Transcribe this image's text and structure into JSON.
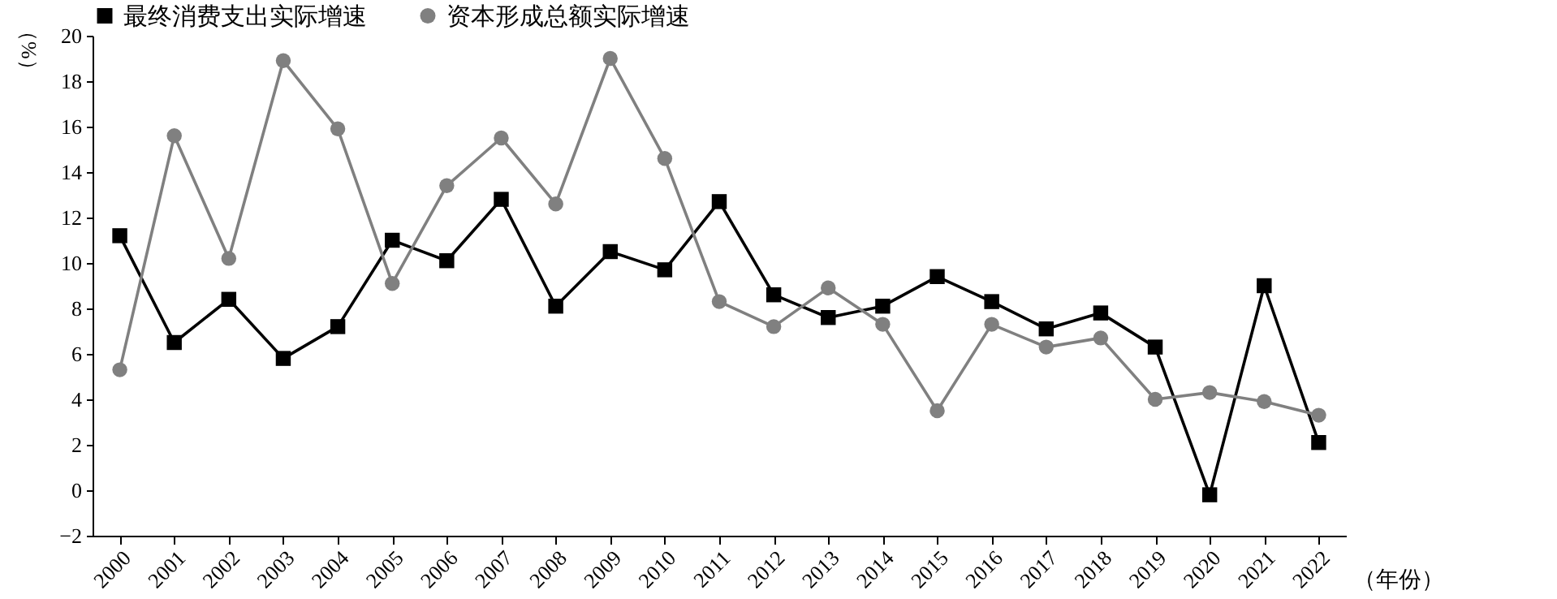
{
  "chart_data": {
    "type": "line",
    "xlabel": "（年份）",
    "ylabel": "（%）",
    "categories": [
      "2000",
      "2001",
      "2002",
      "2003",
      "2004",
      "2005",
      "2006",
      "2007",
      "2008",
      "2009",
      "2010",
      "2011",
      "2012",
      "2013",
      "2014",
      "2015",
      "2016",
      "2017",
      "2018",
      "2019",
      "2020",
      "2021",
      "2022"
    ],
    "series": [
      {
        "name": "最终消费支出实际增速",
        "color": "#000000",
        "marker": "square",
        "values": [
          11.2,
          6.5,
          8.4,
          5.8,
          7.2,
          11.0,
          10.1,
          12.8,
          8.1,
          10.5,
          9.7,
          12.7,
          8.6,
          7.6,
          8.1,
          9.4,
          8.3,
          7.1,
          7.8,
          6.3,
          -0.2,
          9.0,
          2.1
        ]
      },
      {
        "name": "资本形成总额实际增速",
        "color": "#808080",
        "marker": "circle",
        "values": [
          5.3,
          15.6,
          10.2,
          18.9,
          15.9,
          9.1,
          13.4,
          15.5,
          12.6,
          19.0,
          14.6,
          8.3,
          7.2,
          8.9,
          7.3,
          3.5,
          7.3,
          6.3,
          6.7,
          4.0,
          4.3,
          3.9,
          3.3
        ]
      }
    ],
    "ylim": [
      -2,
      20
    ],
    "yticks": [
      -2,
      0,
      2,
      4,
      6,
      8,
      10,
      12,
      14,
      16,
      18,
      20
    ],
    "grid": false,
    "legend": "top",
    "line_style": "solid"
  }
}
